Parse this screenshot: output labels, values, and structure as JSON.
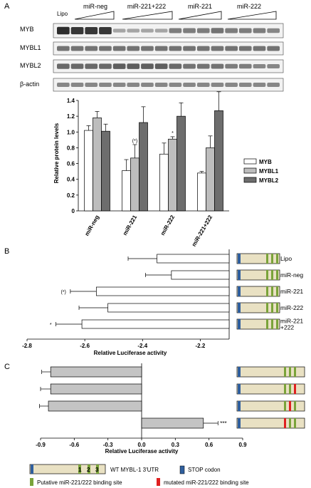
{
  "panel_labels": {
    "a": "A",
    "b": "B",
    "c": "C"
  },
  "blot": {
    "group_labels": [
      "Lipo",
      "miR-neg",
      "miR-221+222",
      "miR-221",
      "miR-222"
    ],
    "row_labels": [
      "MYB",
      "MYBL1",
      "MYBL2",
      "β-actin"
    ]
  },
  "colors": {
    "myb": "#ffffff",
    "mybl1": "#bdbdbd",
    "mybl2": "#6d6d6d",
    "lucbar": "#ffffff",
    "cbar": "#c4c4c4",
    "utr_fill": "#e9e1c3",
    "stop": "#2f5f9e",
    "site": "#7aa33a",
    "mut": "#e02020"
  },
  "chart_data": [
    {
      "type": "bar",
      "ylabel": "Relative protein levels",
      "ylim": [
        0,
        1.4
      ],
      "yticks": [
        "0",
        "0.2",
        "0.4",
        "0.6",
        "0.8",
        "1.0",
        "1.2",
        "1.4"
      ],
      "categories": [
        "miR-neg",
        "miR-221",
        "miR-222",
        "miR-221+222"
      ],
      "series": [
        {
          "name": "MYB",
          "values": [
            1.02,
            0.51,
            0.72,
            0.48
          ],
          "err": [
            0.06,
            0.14,
            0.14,
            0.02
          ]
        },
        {
          "name": "MYBL1",
          "values": [
            1.18,
            0.67,
            0.91,
            0.8
          ],
          "err": [
            0.08,
            0.17,
            0.03,
            0.15
          ]
        },
        {
          "name": "MYBL2",
          "values": [
            1.01,
            1.12,
            1.2,
            1.27
          ],
          "err": [
            0.09,
            0.2,
            0.17,
            0.24
          ]
        }
      ],
      "annotations": [
        {
          "text": "(*)",
          "cat": 1,
          "series": 1
        },
        {
          "text": "*",
          "cat": 2,
          "series": 1
        }
      ]
    },
    {
      "type": "bar",
      "orientation": "horizontal",
      "xlabel": "Relative Luciferase activity",
      "xlim": [
        -2.8,
        -2.1
      ],
      "xticks": [
        "-2.8",
        "-2.6",
        "-2.4",
        "-2.2"
      ],
      "categories": [
        "Lipo",
        "miR-neg",
        "miR-221",
        "miR-222",
        "miR-221+222"
      ],
      "category_lines": [
        [
          "Lipo"
        ],
        [
          "miR-neg"
        ],
        [
          "miR-221"
        ],
        [
          "miR-222"
        ],
        [
          "miR-221",
          "+222"
        ]
      ],
      "values": [
        -2.35,
        -2.3,
        -2.56,
        -2.52,
        -2.61
      ],
      "err": [
        0.1,
        0.09,
        0.09,
        0.1,
        0.09
      ],
      "annotations": [
        {
          "text": "(*)",
          "index": 2
        },
        {
          "text": "*",
          "index": 4
        }
      ]
    },
    {
      "type": "bar",
      "orientation": "horizontal",
      "xlabel": "Relative Luciferase activity",
      "xlim": [
        -0.9,
        0.9
      ],
      "xticks": [
        "-0.9",
        "-0.6",
        "-0.3",
        "0.0",
        "0.3",
        "0.6",
        "0.9"
      ],
      "values": [
        -0.81,
        -0.81,
        -0.83,
        0.55
      ],
      "err": [
        0.08,
        0.09,
        0.08,
        0.13
      ],
      "annotations": [
        {
          "text": "***",
          "index": 3
        }
      ]
    }
  ],
  "legend_bottom": {
    "utr_label": "WT MYBL-1 3'UTR",
    "stop_label": "STOP codon",
    "putative_label": "Putative miR-221/222 binding site",
    "mutated_label": "mutated miR-221/222 binding site",
    "site_numbers": [
      "1",
      "2",
      "3"
    ]
  }
}
